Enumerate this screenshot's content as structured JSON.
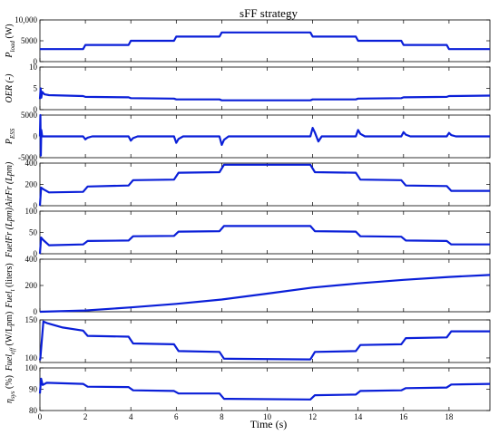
{
  "chart_data": {
    "type": "line",
    "title": "sFF strategy",
    "xlabel": "Time (s)",
    "xlim": [
      0,
      19.8
    ],
    "xticks": [
      0,
      2,
      4,
      6,
      8,
      10,
      12,
      14,
      16,
      18
    ],
    "xtick_labels": [
      "0",
      "2",
      "4",
      "6",
      "8",
      "10",
      "12",
      "14",
      "16",
      "18"
    ],
    "color": "#0a1fd8",
    "panels": [
      {
        "ylabel": "P_load (W)",
        "ylabel_main": "P",
        "ylabel_sub": "load",
        "ylabel_unit": " (W)",
        "ylim": [
          0,
          10000
        ],
        "yticks": [
          0,
          5000,
          10000
        ],
        "ytick_labels": [
          "0",
          "5000",
          "10,000"
        ],
        "x": [
          0,
          1.9,
          2.0,
          3.9,
          4.0,
          5.9,
          6.0,
          7.9,
          8.0,
          11.9,
          12.0,
          13.9,
          14.0,
          15.9,
          16.0,
          17.9,
          18.0,
          19.8
        ],
        "y": [
          3000,
          3000,
          4000,
          4000,
          5000,
          5000,
          6000,
          6000,
          7000,
          7000,
          6000,
          6000,
          5000,
          5000,
          4000,
          4000,
          3000,
          3000
        ]
      },
      {
        "ylabel": "OER (-)",
        "ylabel_main": "OER (-)",
        "ylabel_sub": "",
        "ylabel_unit": "",
        "ylim": [
          0,
          10
        ],
        "yticks": [
          0,
          5,
          10
        ],
        "ytick_labels": [
          "0",
          "5",
          "10"
        ],
        "x": [
          0,
          0.03,
          0.06,
          0.1,
          0.2,
          0.4,
          1.9,
          2.0,
          3.9,
          4.0,
          5.9,
          6.0,
          7.9,
          8.0,
          11.9,
          12.0,
          13.9,
          14.0,
          15.9,
          16.0,
          17.9,
          18.0,
          19.8
        ],
        "y": [
          2.5,
          5.0,
          2.8,
          4.2,
          3.6,
          3.4,
          3.2,
          3.0,
          2.9,
          2.7,
          2.6,
          2.4,
          2.4,
          2.2,
          2.2,
          2.4,
          2.4,
          2.6,
          2.7,
          2.9,
          3.0,
          3.2,
          3.3
        ]
      },
      {
        "ylabel": "P_ESS",
        "ylabel_main": "P",
        "ylabel_sub": "ESS",
        "ylabel_unit": "",
        "ylim": [
          -5000,
          5000
        ],
        "yticks": [
          -5000,
          0,
          5000
        ],
        "ytick_labels": [
          "-5000",
          "0",
          "5000"
        ],
        "x": [
          0,
          0.02,
          0.04,
          0.06,
          0.1,
          0.2,
          1.9,
          2.0,
          2.1,
          2.3,
          3.9,
          4.0,
          4.1,
          4.3,
          5.9,
          6.0,
          6.1,
          6.3,
          7.9,
          8.0,
          8.1,
          8.3,
          11.9,
          12.0,
          12.1,
          12.25,
          12.4,
          13.9,
          14.0,
          14.1,
          14.3,
          15.9,
          16.0,
          16.1,
          16.3,
          17.9,
          18.0,
          18.1,
          18.3,
          19.8
        ],
        "y": [
          0,
          5000,
          -4500,
          1500,
          0,
          0,
          0,
          -700,
          -300,
          0,
          0,
          -1000,
          -400,
          0,
          0,
          -1500,
          -600,
          0,
          0,
          -2000,
          -800,
          0,
          0,
          2000,
          900,
          -1200,
          0,
          0,
          1500,
          600,
          0,
          0,
          1000,
          400,
          0,
          0,
          800,
          300,
          0,
          0
        ]
      },
      {
        "ylabel": "AirFr (Lpm)",
        "ylabel_main": "AirFr (Lpm)",
        "ylabel_sub": "",
        "ylabel_unit": "",
        "ylim": [
          0,
          400
        ],
        "yticks": [
          0,
          200,
          400
        ],
        "ytick_labels": [
          "0",
          "200",
          "400"
        ],
        "x": [
          0,
          0.05,
          0.15,
          0.4,
          1.9,
          2.1,
          3.9,
          4.1,
          5.9,
          6.1,
          7.9,
          8.1,
          11.9,
          12.1,
          13.9,
          14.1,
          15.9,
          16.1,
          17.9,
          18.1,
          19.8
        ],
        "y": [
          0,
          170,
          155,
          125,
          130,
          180,
          190,
          240,
          245,
          310,
          315,
          385,
          385,
          315,
          310,
          245,
          240,
          190,
          185,
          140,
          140
        ]
      },
      {
        "ylabel": "FuelFr (Lpm)",
        "ylabel_main": "FuelFr (Lpm)",
        "ylabel_sub": "",
        "ylabel_unit": "",
        "ylim": [
          0,
          100
        ],
        "yticks": [
          0,
          50,
          100
        ],
        "ytick_labels": [
          "0",
          "50",
          "100"
        ],
        "x": [
          0,
          0.05,
          0.15,
          0.4,
          1.9,
          2.1,
          3.9,
          4.1,
          5.9,
          6.1,
          7.9,
          8.1,
          11.9,
          12.1,
          13.9,
          14.1,
          15.9,
          16.1,
          17.9,
          18.1,
          19.8
        ],
        "y": [
          0,
          38,
          32,
          20,
          22,
          30,
          31,
          41,
          42,
          52,
          53,
          65,
          65,
          53,
          52,
          41,
          40,
          31,
          30,
          22,
          22
        ]
      },
      {
        "ylabel": "Fuel_t (liters)",
        "ylabel_main": "Fuel",
        "ylabel_sub": "t",
        "ylabel_unit": " (liters)",
        "ylim": [
          0,
          400
        ],
        "yticks": [
          0,
          200,
          400
        ],
        "ytick_labels": [
          "0",
          "200",
          "400"
        ],
        "x": [
          0,
          2,
          4,
          6,
          8,
          10,
          12,
          14,
          16,
          18,
          19.8
        ],
        "y": [
          0,
          10,
          33,
          60,
          93,
          138,
          184,
          216,
          243,
          265,
          280
        ]
      },
      {
        "ylabel": "Fuel_eff (W/Lpm)",
        "ylabel_main": "Fuel",
        "ylabel_sub": "eff",
        "ylabel_unit": " (W/Lpm)",
        "ylim": [
          94,
          150
        ],
        "yticks": [
          100,
          150
        ],
        "ytick_labels": [
          "100",
          "150"
        ],
        "x": [
          0,
          0.02,
          0.15,
          0.3,
          1.0,
          1.9,
          2.1,
          3.9,
          4.1,
          5.9,
          6.1,
          7.9,
          8.1,
          11.9,
          12.1,
          13.9,
          14.1,
          15.9,
          16.1,
          17.9,
          18.1,
          19.8
        ],
        "y": [
          97,
          100,
          148,
          146,
          140,
          136,
          129,
          128,
          119,
          118,
          109,
          108,
          99,
          98,
          108,
          109,
          117,
          118,
          126,
          127,
          135,
          135
        ]
      },
      {
        "ylabel": "η_sys (%)",
        "ylabel_main": "η",
        "ylabel_sub": "sys",
        "ylabel_unit": " (%)",
        "ylim": [
          80,
          100
        ],
        "yticks": [
          80,
          90,
          100
        ],
        "ytick_labels": [
          "80",
          "90",
          "100"
        ],
        "x": [
          0,
          0.05,
          0.12,
          0.3,
          1.9,
          2.1,
          3.9,
          4.1,
          5.9,
          6.1,
          7.9,
          8.1,
          11.9,
          12.1,
          13.9,
          14.1,
          15.9,
          16.1,
          17.9,
          18.1,
          19.8
        ],
        "y": [
          88,
          95,
          92,
          93,
          92.5,
          91.2,
          91,
          89.5,
          89.2,
          88,
          88,
          85.5,
          85.2,
          87.2,
          87.5,
          89.2,
          89.5,
          90.5,
          90.8,
          92.2,
          92.5
        ]
      }
    ]
  }
}
